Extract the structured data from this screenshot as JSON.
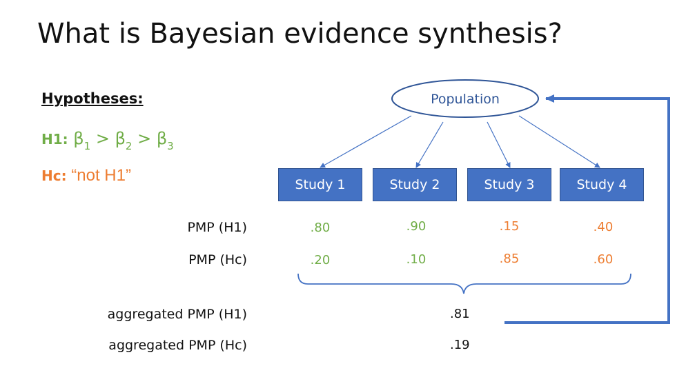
{
  "title": "What is Bayesian evidence synthesis?",
  "hypotheses": {
    "heading": "Hypotheses:",
    "h1": {
      "label": "H1:",
      "beta": "β",
      "s1": "1",
      "s2": "2",
      "s3": "3",
      "gt": ">"
    },
    "hc": {
      "label": "Hc:",
      "text": "“not H1”"
    }
  },
  "population_label": "Population",
  "studies": [
    "Study 1",
    "Study 2",
    "Study 3",
    "Study 4"
  ],
  "rows": {
    "pmp_h1_label": "PMP (H1)",
    "pmp_hc_label": "PMP (Hc)",
    "pmp_h1_values": [
      ".80",
      ".90",
      ".15",
      ".40"
    ],
    "pmp_hc_values": [
      ".20",
      ".10",
      ".85",
      ".60"
    ],
    "value_colors": [
      "green",
      "green",
      "orange",
      "orange"
    ]
  },
  "aggregated": {
    "h1_label": "aggregated PMP (H1)",
    "h1_value": ".81",
    "hc_label": "aggregated PMP (Hc)",
    "hc_value": ".19"
  },
  "colors": {
    "h1": "#70ad47",
    "hc": "#ed7d31",
    "study_fill": "#4472c4",
    "population_stroke": "#2f5597",
    "feedback_arrow": "#4472c4"
  }
}
